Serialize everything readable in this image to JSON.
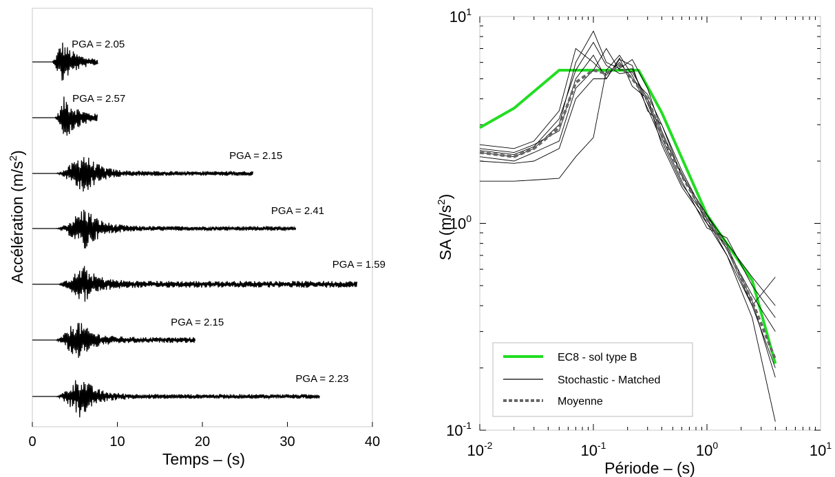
{
  "chart_data": [
    {
      "type": "line",
      "xlabel": "Temps – (s)",
      "ylabel_main": "Accélération (m/s",
      "ylabel_sup": "2",
      "ylabel_close": ")",
      "xlim": [
        0,
        40
      ],
      "xticks": [
        0,
        10,
        20,
        30,
        40
      ],
      "grid": false,
      "series": [
        {
          "pga_label": "PGA = 2.05",
          "start": 2.3,
          "duration": 7.7,
          "peak_time": 3.4,
          "amplitude": 1.0,
          "coda_level": 0.08
        },
        {
          "pga_label": "PGA = 2.57",
          "start": 2.6,
          "duration": 7.7,
          "peak_time": 3.8,
          "amplitude": 1.0,
          "coda_level": 0.08
        },
        {
          "pga_label": "PGA = 2.15",
          "start": 2.7,
          "duration": 26.0,
          "peak_time": 6.0,
          "amplitude": 1.0,
          "coda_level": 0.1
        },
        {
          "pga_label": "PGA = 2.41",
          "start": 2.7,
          "duration": 31.0,
          "peak_time": 6.2,
          "amplitude": 1.0,
          "coda_level": 0.1
        },
        {
          "pga_label": "PGA = 1.59",
          "start": 2.9,
          "duration": 38.2,
          "peak_time": 6.0,
          "amplitude": 0.85,
          "coda_level": 0.17
        },
        {
          "pga_label": "PGA = 2.15",
          "start": 2.7,
          "duration": 19.2,
          "peak_time": 5.2,
          "amplitude": 1.0,
          "coda_level": 0.12
        },
        {
          "pga_label": "PGA = 2.23",
          "start": 2.7,
          "duration": 33.8,
          "peak_time": 5.6,
          "amplitude": 1.0,
          "coda_level": 0.1
        }
      ]
    },
    {
      "type": "line",
      "xlabel": "Période – (s)",
      "ylabel_main": "SA (m/s",
      "ylabel_sup": "2",
      "ylabel_close": ")",
      "xscale": "log",
      "yscale": "log",
      "xlim": [
        0.01,
        10
      ],
      "ylim": [
        0.1,
        10
      ],
      "xticks": [
        {
          "base": "10",
          "exp": "-2"
        },
        {
          "base": "10",
          "exp": "-1"
        },
        {
          "base": "10",
          "exp": "0"
        },
        {
          "base": "10",
          "exp": "1"
        }
      ],
      "yticks": [
        {
          "base": "10",
          "exp": "-1"
        },
        {
          "base": "10",
          "exp": "0"
        },
        {
          "base": "10",
          "exp": "1"
        }
      ],
      "grid": false,
      "legend_position": "bottom-left",
      "ec8": {
        "name": "EC8 - sol type B",
        "color": "#22dd22",
        "x": [
          0.01,
          0.02,
          0.05,
          0.25,
          0.4,
          1.0,
          2.5,
          4.0
        ],
        "y": [
          2.9,
          3.6,
          5.5,
          5.5,
          3.43,
          1.1,
          0.53,
          0.21
        ]
      },
      "stochastic": {
        "name": "Stochastic - Matched",
        "color": "#000000",
        "curves": [
          {
            "x": [
              0.01,
              0.02,
              0.03,
              0.05,
              0.07,
              0.1,
              0.13,
              0.17,
              0.22,
              0.3,
              0.4,
              0.6,
              1.0,
              1.5,
              2.5,
              4.0
            ],
            "y": [
              2.4,
              2.3,
              2.5,
              3.5,
              7.0,
              6.0,
              5.2,
              6.0,
              5.0,
              4.2,
              3.0,
              1.8,
              1.05,
              0.75,
              0.4,
              0.2
            ]
          },
          {
            "x": [
              0.01,
              0.02,
              0.03,
              0.05,
              0.07,
              0.1,
              0.13,
              0.17,
              0.22,
              0.3,
              0.4,
              0.6,
              1.0,
              1.5,
              2.5,
              4.0
            ],
            "y": [
              2.2,
              2.1,
              2.3,
              3.0,
              6.0,
              8.5,
              6.0,
              5.6,
              6.2,
              4.5,
              2.8,
              1.7,
              1.1,
              0.8,
              0.55,
              0.4
            ]
          },
          {
            "x": [
              0.01,
              0.02,
              0.03,
              0.05,
              0.07,
              0.1,
              0.13,
              0.17,
              0.22,
              0.3,
              0.4,
              0.6,
              1.0,
              1.5,
              2.5,
              4.0
            ],
            "y": [
              2.3,
              2.2,
              2.4,
              2.8,
              5.0,
              6.5,
              5.0,
              6.3,
              4.6,
              4.0,
              2.4,
              1.5,
              1.0,
              0.7,
              0.35,
              0.11
            ]
          },
          {
            "x": [
              0.01,
              0.02,
              0.03,
              0.05,
              0.07,
              0.1,
              0.13,
              0.17,
              0.22,
              0.3,
              0.4,
              0.6,
              1.0,
              1.5,
              2.5,
              4.0
            ],
            "y": [
              2.1,
              2.0,
              2.2,
              2.5,
              4.5,
              5.5,
              7.0,
              5.5,
              5.6,
              3.8,
              2.6,
              1.6,
              0.95,
              0.85,
              0.5,
              0.35
            ]
          },
          {
            "x": [
              0.01,
              0.02,
              0.03,
              0.05,
              0.07,
              0.1,
              0.13,
              0.17,
              0.22,
              0.3,
              0.4,
              0.6,
              1.0,
              1.5,
              2.5,
              4.0
            ],
            "y": [
              2.0,
              1.95,
              2.0,
              2.3,
              4.0,
              5.0,
              5.0,
              6.2,
              5.8,
              3.5,
              3.0,
              1.7,
              1.1,
              0.75,
              0.45,
              0.3
            ]
          },
          {
            "x": [
              0.01,
              0.02,
              0.03,
              0.05,
              0.07,
              0.1,
              0.13,
              0.17,
              0.22,
              0.3,
              0.4,
              0.6,
              1.0,
              1.5,
              2.5,
              4.0
            ],
            "y": [
              1.6,
              1.6,
              1.62,
              1.65,
              2.1,
              2.6,
              5.5,
              6.5,
              5.2,
              3.6,
              2.5,
              1.55,
              1.05,
              0.7,
              0.4,
              0.55
            ]
          },
          {
            "x": [
              0.01,
              0.02,
              0.03,
              0.05,
              0.07,
              0.1,
              0.13,
              0.17,
              0.22,
              0.3,
              0.4,
              0.6,
              1.0,
              1.5,
              2.5,
              4.0
            ],
            "y": [
              2.25,
              2.15,
              2.35,
              3.2,
              5.5,
              7.5,
              5.8,
              5.3,
              5.4,
              4.0,
              2.7,
              1.75,
              1.0,
              0.78,
              0.42,
              0.18
            ]
          }
        ]
      },
      "mean": {
        "name": "Moyenne",
        "color": "#666666",
        "x": [
          0.01,
          0.02,
          0.03,
          0.05,
          0.07,
          0.1,
          0.13,
          0.17,
          0.22,
          0.3,
          0.4,
          0.6,
          1.0,
          1.5,
          2.5,
          4.0
        ],
        "y": [
          2.2,
          2.1,
          2.3,
          2.9,
          4.8,
          5.5,
          5.3,
          5.8,
          5.0,
          4.0,
          2.7,
          1.7,
          1.05,
          0.76,
          0.42,
          0.22
        ]
      }
    }
  ]
}
